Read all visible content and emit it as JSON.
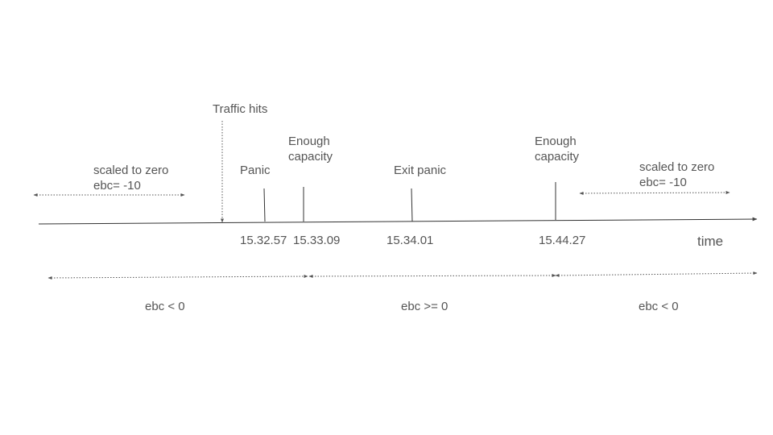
{
  "diagram": {
    "traffic_label": "Traffic hits",
    "time_label": "time",
    "left_state": {
      "line1": "scaled to zero",
      "line2": "ebc= -10"
    },
    "right_state": {
      "line1": "scaled to zero",
      "line2": "ebc= -10"
    },
    "events": [
      {
        "label": "Panic",
        "time": "15.32.57"
      },
      {
        "label_line1": "Enough",
        "label_line2": "capacity",
        "time": "15.33.09"
      },
      {
        "label": "Exit panic",
        "time": "15.34.01"
      },
      {
        "label_line1": "Enough",
        "label_line2": "capacity",
        "time": "15.44.27"
      }
    ],
    "ranges": [
      {
        "label": "ebc < 0"
      },
      {
        "label": "ebc >= 0"
      },
      {
        "label": "ebc < 0"
      }
    ],
    "colors": {
      "line": "#333333",
      "text": "#555555",
      "dotted": "#555555"
    }
  }
}
